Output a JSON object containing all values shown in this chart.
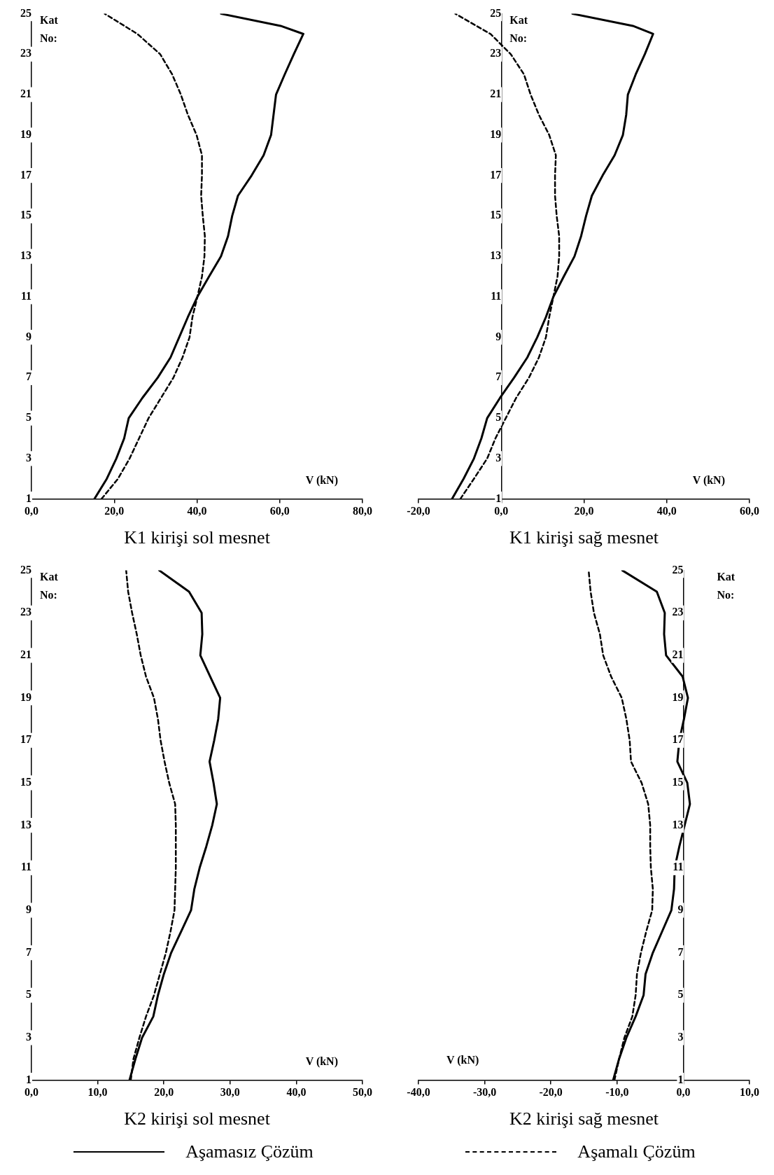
{
  "chart_data": [
    {
      "type": "line",
      "title": "K1 kirişi sol mesnet",
      "xlabel": "V (kN)",
      "ylabel": "Kat No:",
      "xlim": [
        0,
        80
      ],
      "xticks": [
        {
          "value": 0,
          "label": "0,0"
        },
        {
          "value": 20,
          "label": "20,0"
        },
        {
          "value": 40,
          "label": "40,0"
        },
        {
          "value": 60,
          "label": "60,0"
        },
        {
          "value": 80,
          "label": "80,0"
        }
      ],
      "ylim": [
        1,
        25
      ],
      "yticks": [
        1,
        3,
        5,
        7,
        9,
        11,
        13,
        15,
        17,
        19,
        21,
        23,
        25
      ],
      "series": [
        {
          "color": "#000000",
          "line_style": "solid",
          "x": [
            15.2,
            18.2,
            20.5,
            22.4,
            23.5,
            26.8,
            30.5,
            33.6,
            35.7,
            37.8,
            40.1,
            42.9,
            45.8,
            47.5,
            48.5,
            49.9,
            53.2,
            56.1,
            57.9,
            58.5,
            59.1,
            61.2,
            63.4,
            65.7,
            60.2,
            45.8
          ],
          "values": [
            1,
            2,
            3,
            4,
            5,
            6,
            7,
            8,
            9,
            10,
            11,
            12,
            13,
            14,
            15,
            16,
            17,
            18,
            19,
            20,
            21,
            22,
            23,
            24,
            24.4,
            25
          ]
        },
        {
          "color": "#000000",
          "line_style": "dashed",
          "x": [
            16.9,
            20.9,
            23.7,
            26.0,
            28.3,
            31.3,
            34.3,
            36.5,
            38.2,
            38.9,
            40.1,
            41.2,
            41.8,
            41.9,
            41.4,
            41.0,
            41.2,
            41.2,
            39.9,
            37.8,
            36.1,
            34.0,
            31.1,
            25.6,
            17.7
          ],
          "values": [
            1,
            2,
            3,
            4,
            5,
            6,
            7,
            8,
            9,
            10,
            11,
            12,
            13,
            14,
            15,
            16,
            17,
            18,
            19,
            20,
            21,
            22,
            23,
            24,
            25
          ]
        }
      ]
    },
    {
      "type": "line",
      "title": "K1 kirişi sağ mesnet",
      "xlabel": "V (kN)",
      "ylabel": "Kat No:",
      "xlim": [
        -20,
        60
      ],
      "xticks": [
        {
          "value": -20,
          "label": "-20,0"
        },
        {
          "value": 0,
          "label": "0,0"
        },
        {
          "value": 20,
          "label": "20,0"
        },
        {
          "value": 40,
          "label": "40,0"
        },
        {
          "value": 60,
          "label": "60,0"
        }
      ],
      "ylim": [
        1,
        25
      ],
      "yticks": [
        1,
        3,
        5,
        7,
        9,
        11,
        13,
        15,
        17,
        19,
        21,
        23,
        25
      ],
      "series": [
        {
          "color": "#000000",
          "line_style": "solid",
          "x": [
            -11.9,
            -9.1,
            -6.6,
            -4.8,
            -3.4,
            -0.3,
            3.1,
            6.3,
            8.7,
            10.8,
            12.6,
            15.1,
            17.7,
            19.3,
            20.5,
            21.9,
            24.5,
            27.4,
            29.4,
            30.2,
            30.6,
            32.5,
            34.7,
            36.7,
            31.8,
            17.2
          ],
          "values": [
            1,
            2,
            3,
            4,
            5,
            6,
            7,
            8,
            9,
            10,
            11,
            12,
            13,
            14,
            15,
            16,
            17,
            18,
            19,
            20,
            21,
            22,
            23,
            24,
            24.4,
            25
          ]
        },
        {
          "color": "#000000",
          "line_style": "dashed",
          "x": [
            -9.9,
            -6.6,
            -3.4,
            -1.4,
            1.1,
            3.6,
            6.7,
            9.1,
            10.8,
            11.6,
            12.6,
            13.6,
            14.0,
            14.0,
            13.4,
            13.0,
            13.0,
            13.2,
            11.6,
            9.1,
            7.1,
            5.5,
            2.3,
            -2.6,
            -11.1
          ],
          "values": [
            1,
            2,
            3,
            4,
            5,
            6,
            7,
            8,
            9,
            10,
            11,
            12,
            13,
            14,
            15,
            16,
            17,
            18,
            19,
            20,
            21,
            22,
            23,
            24,
            25
          ]
        }
      ]
    },
    {
      "type": "line",
      "title": "K2 kirişi sol mesnet",
      "xlabel": "V (kN)",
      "ylabel": "Kat No:",
      "legend": "bottom",
      "xlim": [
        0,
        50
      ],
      "xticks": [
        {
          "value": 0,
          "label": "0,0"
        },
        {
          "value": 10,
          "label": "10,0"
        },
        {
          "value": 20,
          "label": "20,0"
        },
        {
          "value": 30,
          "label": "30,0"
        },
        {
          "value": 40,
          "label": "40,0"
        },
        {
          "value": 50,
          "label": "50,0"
        }
      ],
      "ylim": [
        1,
        25
      ],
      "yticks": [
        1,
        3,
        5,
        7,
        9,
        11,
        13,
        15,
        17,
        19,
        21,
        23,
        25
      ],
      "series": [
        {
          "name": "Aşamasız Çözüm",
          "color": "#000000",
          "line_style": "solid",
          "x": [
            14.8,
            15.7,
            16.7,
            18.4,
            19.1,
            20.0,
            21.1,
            22.6,
            24.1,
            24.6,
            25.4,
            26.4,
            27.3,
            28.0,
            27.5,
            26.9,
            27.6,
            28.2,
            28.5,
            27.0,
            25.5,
            25.8,
            25.7,
            23.8,
            19.3
          ],
          "values": [
            1,
            2,
            3,
            4,
            5,
            6,
            7,
            8,
            9,
            10,
            11,
            12,
            13,
            14,
            15,
            16,
            17,
            18,
            19,
            20,
            21,
            22,
            23,
            24,
            25
          ]
        },
        {
          "color": "#000000",
          "line_style": "dashed",
          "x": [
            15.0,
            15.4,
            16.3,
            17.3,
            18.5,
            19.4,
            20.3,
            21.0,
            21.6,
            21.7,
            21.8,
            21.8,
            21.8,
            21.7,
            20.8,
            20.1,
            19.5,
            19.1,
            18.5,
            17.3,
            16.5,
            15.9,
            15.2,
            14.6,
            14.3
          ],
          "values": [
            1,
            2,
            3,
            4,
            5,
            6,
            7,
            8,
            9,
            10,
            11,
            12,
            13,
            14,
            15,
            16,
            17,
            18,
            19,
            20,
            21,
            22,
            23,
            24,
            25
          ]
        }
      ]
    },
    {
      "type": "line",
      "title": "K2 kirişi sağ mesnet",
      "xlabel": "V (kN)",
      "ylabel": "Kat No:",
      "legend": "bottom",
      "xlim": [
        -40,
        10
      ],
      "xticks": [
        {
          "value": -40,
          "label": "-40,0"
        },
        {
          "value": -30,
          "label": "-30,0"
        },
        {
          "value": -20,
          "label": "-20,0"
        },
        {
          "value": -10,
          "label": "-10,0"
        },
        {
          "value": 0,
          "label": "0,0"
        },
        {
          "value": 10,
          "label": "10,0"
        }
      ],
      "ylim": [
        1,
        25
      ],
      "yticks": [
        1,
        3,
        5,
        7,
        9,
        11,
        13,
        15,
        17,
        19,
        21,
        23,
        25
      ],
      "series": [
        {
          "color": "#000000",
          "line_style": "solid",
          "x": [
            -10.6,
            -9.7,
            -8.6,
            -7.2,
            -6.0,
            -5.7,
            -4.6,
            -3.2,
            -1.8,
            -1.4,
            -1.3,
            -0.6,
            0.2,
            1.0,
            0.6,
            -0.9,
            -0.6,
            0.1,
            0.7,
            -0.1,
            -2.6,
            -2.9,
            -2.8,
            -4.0,
            -9.2
          ],
          "values": [
            1,
            2,
            3,
            4,
            5,
            6,
            7,
            8,
            9,
            10,
            11,
            12,
            13,
            14,
            15,
            16,
            17,
            18,
            19,
            20,
            21,
            22,
            23,
            24,
            25
          ]
        },
        {
          "name": "Aşamalı Çözüm",
          "color": "#000000",
          "line_style": "dashed",
          "x": [
            -10.4,
            -9.7,
            -8.9,
            -7.7,
            -7.2,
            -7.0,
            -6.4,
            -5.6,
            -4.7,
            -4.6,
            -4.9,
            -5.0,
            -5.0,
            -5.3,
            -6.3,
            -7.9,
            -8.1,
            -8.6,
            -9.3,
            -10.9,
            -12.1,
            -12.6,
            -13.5,
            -14.0,
            -14.3
          ],
          "values": [
            1,
            2,
            3,
            4,
            5,
            6,
            7,
            8,
            9,
            10,
            11,
            12,
            13,
            14,
            15,
            16,
            17,
            18,
            19,
            20,
            21,
            22,
            23,
            24,
            25
          ]
        }
      ]
    }
  ]
}
